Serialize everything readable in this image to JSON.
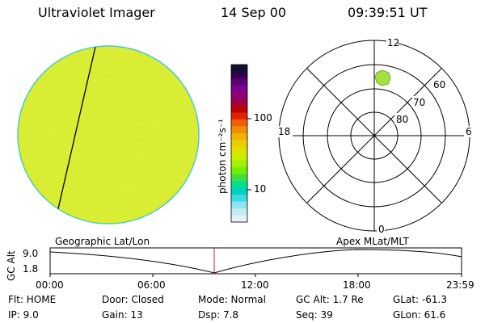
{
  "header": {
    "title": "Ultraviolet Imager",
    "date": "14 Sep 00",
    "time": "09:39:51 UT"
  },
  "colorbar": {
    "label": "photon cm⁻²s⁻¹",
    "ticks": [
      "100",
      "10"
    ],
    "colors": [
      "#101030",
      "#300050",
      "#5a0070",
      "#7a0090",
      "#900070",
      "#a00040",
      "#c00000",
      "#e02000",
      "#f06000",
      "#f08c00",
      "#f0b000",
      "#e8d000",
      "#e0e000",
      "#c8ee00",
      "#a0f000",
      "#70f000",
      "#40e040",
      "#00e090",
      "#00d0c0",
      "#40d8e0",
      "#90e4ee",
      "#c0ecf2",
      "#e6f2f6"
    ]
  },
  "polar_plot": {
    "mlt_labels": {
      "top": "12",
      "left": "18",
      "right": "6",
      "bottom": "0"
    },
    "lat_labels": [
      "60",
      "70",
      "80"
    ]
  },
  "timeline": {
    "left_label": "Geographic Lat/Lon",
    "right_label": "Apex MLat/MLT",
    "y_axis_title": "GC Alt",
    "y_ticks": [
      "9.0",
      "1.8"
    ],
    "x_ticks": [
      "00:00",
      "06:00",
      "12:00",
      "18:00",
      "23:59"
    ]
  },
  "info": {
    "flt": "Flt: HOME",
    "door": "Door: Closed",
    "mode": "Mode: Normal",
    "gc_alt": "GC Alt: 1.7 Re",
    "glat": "GLat: -61.3",
    "ip": "IP:  9.0",
    "gain": "Gain: 13",
    "dsp": "Dsp:    7.8",
    "seq": "Seq: 39",
    "glon": "GLon:  61.6"
  },
  "colors": {
    "disk_fill": "#d8ec2c",
    "disk_edge": "#40c8c8",
    "marker": "#d02020",
    "blob": "#a8e040"
  }
}
